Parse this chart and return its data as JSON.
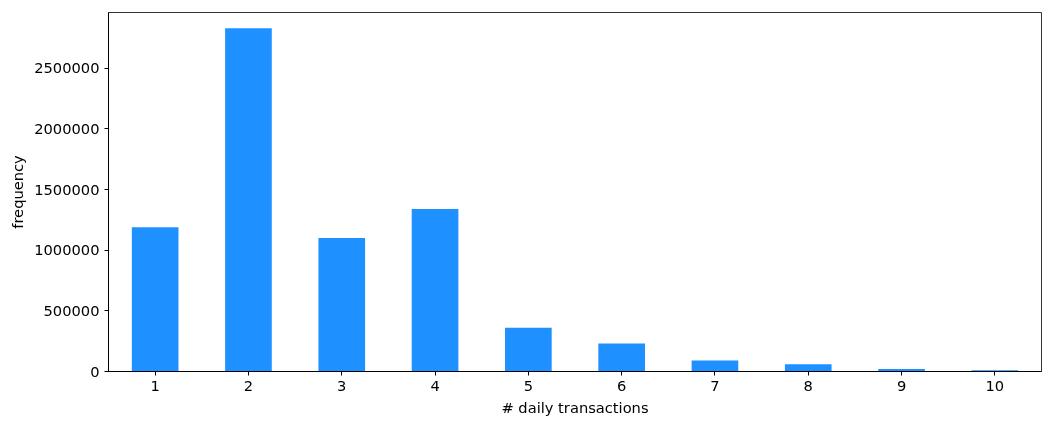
{
  "chart_data": {
    "type": "bar",
    "xlabel": "# daily transactions",
    "ylabel": "frequency",
    "categories": [
      "1",
      "2",
      "3",
      "4",
      "5",
      "6",
      "7",
      "8",
      "9",
      "10"
    ],
    "values": [
      1190000,
      2830000,
      1100000,
      1340000,
      360000,
      230000,
      90000,
      60000,
      20000,
      10000
    ],
    "color": "#1e90ff",
    "ylim": [
      0,
      2960000
    ],
    "yticks": [
      0,
      500000,
      1000000,
      1500000,
      2000000,
      2500000
    ],
    "grid": false
  }
}
